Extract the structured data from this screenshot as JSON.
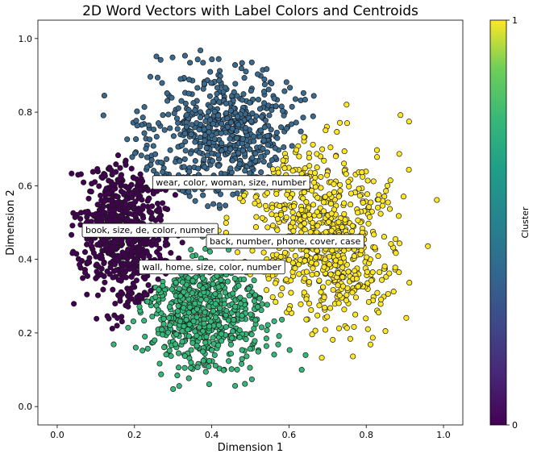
{
  "chart_data": {
    "type": "scatter",
    "title": "2D Word Vectors with Label Colors and Centroids",
    "xlabel": "Dimension 1",
    "ylabel": "Dimension 2",
    "xlim": [
      -0.05,
      1.05
    ],
    "ylim": [
      -0.05,
      1.05
    ],
    "x_ticks": [
      "0.0",
      "0.2",
      "0.4",
      "0.6",
      "0.8",
      "1.0"
    ],
    "y_ticks": [
      "0.0",
      "0.2",
      "0.4",
      "0.6",
      "0.8",
      "1.0"
    ],
    "grid": false,
    "colorbar": {
      "label": "Cluster",
      "colormap": "viridis",
      "range": [
        0,
        1
      ],
      "tick_labels": [
        "0",
        "1"
      ]
    },
    "clusters": [
      {
        "color_value": 0.0,
        "color": "#440154",
        "region": "left",
        "center": [
          0.17,
          0.48
        ],
        "spread": [
          0.055,
          0.1
        ]
      },
      {
        "color_value": 0.33,
        "color": "#3b6a8f",
        "region": "top",
        "center": [
          0.44,
          0.74
        ],
        "spread": [
          0.1,
          0.09
        ]
      },
      {
        "color_value": 0.67,
        "color": "#35b779",
        "region": "bottom",
        "center": [
          0.38,
          0.26
        ],
        "spread": [
          0.08,
          0.08
        ]
      },
      {
        "color_value": 1.0,
        "color": "#fde725",
        "region": "right",
        "center": [
          0.7,
          0.44
        ],
        "spread": [
          0.085,
          0.12
        ]
      }
    ],
    "centroids": [
      {
        "label": "wear, color, woman, size, number",
        "x": 0.45,
        "y": 0.61
      },
      {
        "label": "book, size, de, color, number",
        "x": 0.24,
        "y": 0.48
      },
      {
        "label": "back, number, phone, cover, case",
        "x": 0.59,
        "y": 0.45
      },
      {
        "label": "wall, home, size, color, number",
        "x": 0.4,
        "y": 0.38
      }
    ]
  }
}
